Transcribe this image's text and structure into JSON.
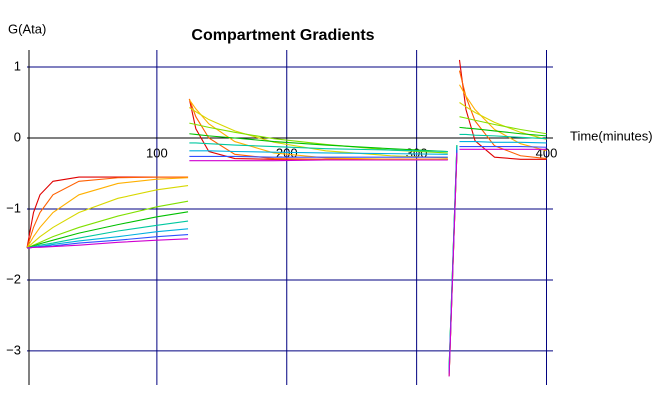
{
  "chart_data": {
    "type": "line",
    "title": "Compartment Gradients",
    "y_label": "G(Ata)",
    "x_label": "Time(minutes)",
    "x": [
      0,
      5,
      10,
      20,
      40,
      70,
      100,
      124,
      124.5,
      125,
      130,
      140,
      160,
      190,
      230,
      280,
      324,
      324.5,
      325,
      331,
      332,
      333,
      338,
      345,
      360,
      380,
      400
    ],
    "series": [
      {
        "color": "#e00000",
        "values": [
          -1.55,
          -1.05,
          -0.8,
          -0.61,
          -0.55,
          -0.55,
          -0.55,
          -0.55,
          null,
          0.55,
          0.13,
          -0.19,
          -0.29,
          -0.3,
          -0.3,
          -0.3,
          -0.3,
          null,
          -3.35,
          -0.2,
          null,
          1.1,
          0.4,
          -0.04,
          -0.27,
          -0.3,
          -0.3
        ]
      },
      {
        "color": "#ff6000",
        "values": [
          -1.55,
          -1.26,
          -1.05,
          -0.8,
          -0.61,
          -0.56,
          -0.55,
          -0.55,
          null,
          0.55,
          0.3,
          0.0,
          -0.23,
          -0.29,
          -0.3,
          -0.3,
          -0.3,
          null,
          -3.35,
          -0.2,
          null,
          0.95,
          0.58,
          0.24,
          -0.11,
          -0.25,
          -0.29
        ]
      },
      {
        "color": "#ffb000",
        "values": [
          -1.55,
          -1.39,
          -1.26,
          -1.05,
          -0.8,
          -0.64,
          -0.58,
          -0.56,
          null,
          0.54,
          0.41,
          0.2,
          -0.05,
          -0.21,
          -0.28,
          -0.3,
          -0.3,
          null,
          -3.35,
          -0.2,
          null,
          0.75,
          0.59,
          0.4,
          0.12,
          -0.08,
          -0.18
        ]
      },
      {
        "color": "#d8d800",
        "values": [
          -1.55,
          -1.47,
          -1.39,
          -1.26,
          -1.05,
          -0.85,
          -0.73,
          -0.67,
          null,
          0.43,
          0.37,
          0.26,
          0.1,
          -0.06,
          -0.18,
          -0.25,
          -0.28,
          null,
          -3.33,
          -0.18,
          null,
          0.5,
          0.44,
          0.36,
          0.22,
          0.08,
          -0.02
        ]
      },
      {
        "color": "#80e000",
        "values": [
          -1.55,
          -1.51,
          -1.47,
          -1.39,
          -1.26,
          -1.1,
          -0.97,
          -0.89,
          null,
          0.21,
          0.19,
          0.15,
          0.08,
          -0.01,
          -0.09,
          -0.17,
          -0.21,
          null,
          -3.26,
          -0.12,
          null,
          0.3,
          0.28,
          0.25,
          0.19,
          0.12,
          0.06
        ]
      },
      {
        "color": "#00c000",
        "values": [
          -1.55,
          -1.52,
          -1.49,
          -1.44,
          -1.34,
          -1.22,
          -1.11,
          -1.04,
          null,
          0.06,
          0.05,
          0.03,
          0.0,
          -0.05,
          -0.1,
          -0.15,
          -0.19,
          null,
          -3.24,
          -0.1,
          null,
          0.15,
          0.14,
          0.13,
          0.1,
          0.06,
          0.03
        ]
      },
      {
        "color": "#00c8a0",
        "values": [
          -1.55,
          -1.53,
          -1.51,
          -1.48,
          -1.41,
          -1.31,
          -1.23,
          -1.17,
          null,
          -0.07,
          -0.07,
          -0.08,
          -0.1,
          -0.12,
          -0.15,
          -0.17,
          -0.19,
          null,
          -3.24,
          -0.1,
          null,
          0.05,
          0.05,
          0.04,
          0.03,
          0.01,
          -0.01
        ]
      },
      {
        "color": "#00b0e0",
        "values": [
          -1.55,
          -1.54,
          -1.53,
          -1.5,
          -1.45,
          -1.39,
          -1.32,
          -1.28,
          null,
          -0.18,
          -0.18,
          -0.18,
          -0.19,
          -0.2,
          -0.21,
          -0.22,
          -0.23,
          null,
          -3.28,
          -0.13,
          null,
          -0.05,
          -0.05,
          -0.05,
          -0.06,
          -0.06,
          -0.07
        ]
      },
      {
        "color": "#3050ff",
        "values": [
          -1.55,
          -1.54,
          -1.53,
          -1.52,
          -1.48,
          -1.44,
          -1.39,
          -1.36,
          null,
          -0.26,
          -0.26,
          -0.26,
          -0.26,
          -0.27,
          -0.27,
          -0.27,
          -0.27,
          null,
          -3.32,
          -0.17,
          null,
          -0.12,
          -0.12,
          -0.12,
          -0.12,
          -0.12,
          -0.13
        ]
      },
      {
        "color": "#d000d0",
        "values": [
          -1.55,
          -1.54,
          -1.54,
          -1.53,
          -1.51,
          -1.47,
          -1.44,
          -1.42,
          null,
          -0.32,
          -0.32,
          -0.32,
          -0.32,
          -0.32,
          -0.31,
          -0.31,
          -0.31,
          null,
          -3.36,
          -0.21,
          null,
          -0.16,
          -0.16,
          -0.16,
          -0.16,
          -0.16,
          -0.16
        ]
      }
    ],
    "xlim": [
      0,
      405
    ],
    "ylim": [
      -3.48,
      1.24
    ],
    "xticks": [
      100,
      200,
      300,
      400
    ],
    "yticks": [
      1,
      0,
      {
        "value": -1,
        "label": "−1"
      },
      {
        "value": -2,
        "label": "−2"
      },
      {
        "value": -3,
        "label": "−3"
      }
    ],
    "grid": true
  }
}
